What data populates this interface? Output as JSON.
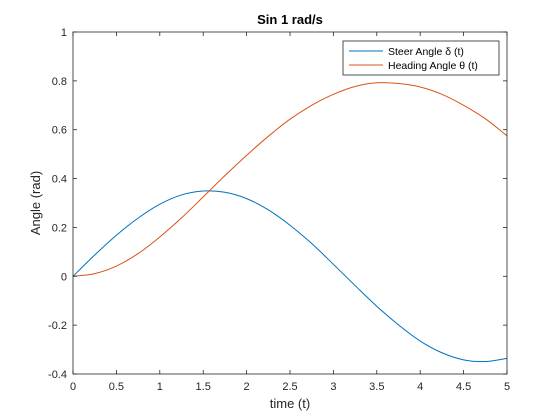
{
  "chart_data": {
    "type": "line",
    "title": "Sin 1 rad/s",
    "xlabel": "time (t)",
    "ylabel": "Angle (rad)",
    "xlim": [
      0,
      5
    ],
    "ylim": [
      -0.4,
      1
    ],
    "xticks": [
      0,
      0.5,
      1,
      1.5,
      2,
      2.5,
      3,
      3.5,
      4,
      4.5,
      5
    ],
    "xtick_labels": [
      "0",
      "0.5",
      "1",
      "1.5",
      "2",
      "2.5",
      "3",
      "3.5",
      "4",
      "4.5",
      "5"
    ],
    "yticks": [
      -0.4,
      -0.2,
      0,
      0.2,
      0.4,
      0.6,
      0.8,
      1
    ],
    "ytick_labels": [
      "-0.4",
      "-0.2",
      "0",
      "0.2",
      "0.4",
      "0.6",
      "0.8",
      "1"
    ],
    "grid": false,
    "legend_position": "top-right",
    "x": [
      0,
      0.25,
      0.5,
      0.75,
      1,
      1.25,
      1.5,
      1.75,
      2,
      2.25,
      2.5,
      2.75,
      3,
      3.25,
      3.5,
      3.75,
      4,
      4.25,
      4.5,
      4.75,
      5
    ],
    "series": [
      {
        "name": "Steer Angle δ (t)",
        "color": "#0072BD",
        "values": [
          0,
          0.087,
          0.168,
          0.238,
          0.295,
          0.333,
          0.349,
          0.344,
          0.318,
          0.272,
          0.209,
          0.134,
          0.049,
          -0.038,
          -0.123,
          -0.199,
          -0.265,
          -0.313,
          -0.342,
          -0.349,
          -0.336
        ]
      },
      {
        "name": "Heading Angle θ (t)",
        "color": "#D95319",
        "values": [
          0,
          0.011,
          0.042,
          0.093,
          0.161,
          0.239,
          0.325,
          0.412,
          0.495,
          0.573,
          0.643,
          0.7,
          0.745,
          0.777,
          0.792,
          0.789,
          0.775,
          0.745,
          0.7,
          0.645,
          0.575
        ]
      }
    ]
  }
}
